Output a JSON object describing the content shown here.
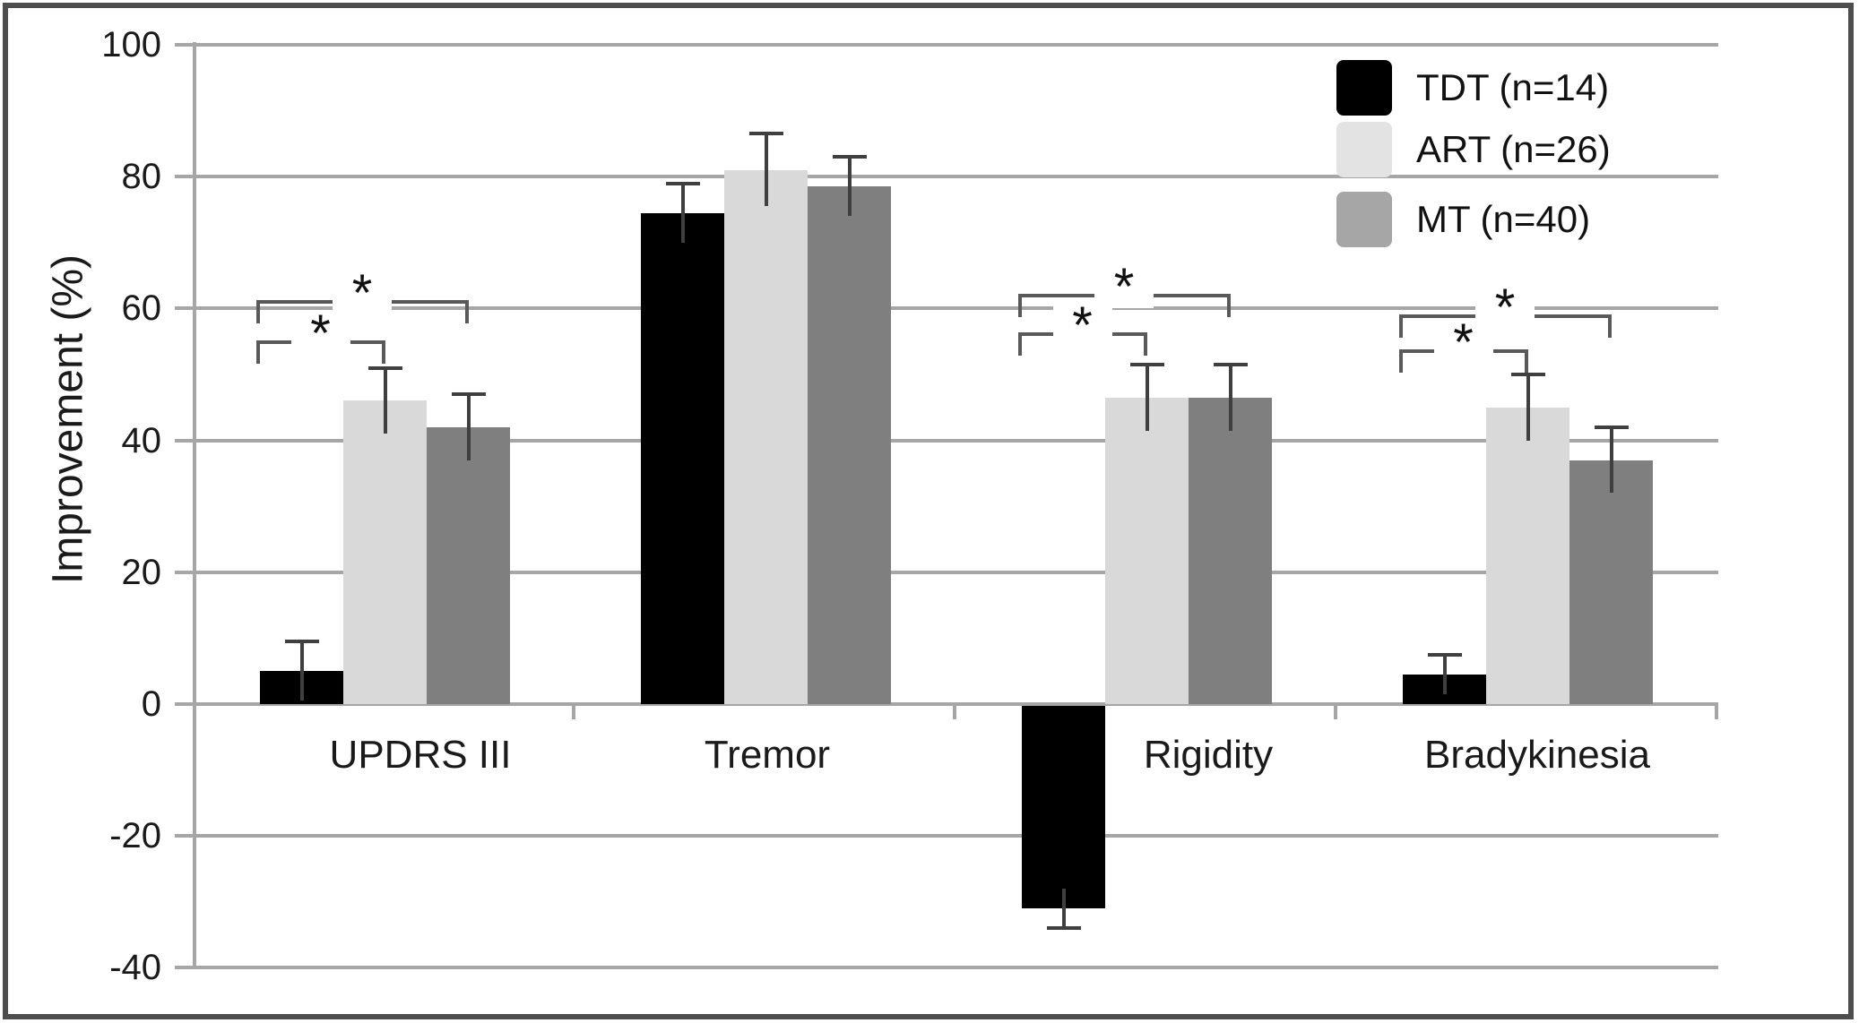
{
  "figure": {
    "background": "#ffffff",
    "border_color": "#4d4d4d"
  },
  "chart_data": {
    "type": "bar",
    "title": "",
    "xlabel": "",
    "ylabel": "Improvement (%)",
    "ylim": [
      -40,
      100
    ],
    "yticks": [
      100,
      80,
      60,
      40,
      20,
      0,
      -20,
      -40
    ],
    "grid": true,
    "gridline_color": "#a6a6a6",
    "legend_position": "top-right",
    "categories": [
      "UPDRS III",
      "Tremor",
      "Rigidity",
      "Bradykinesia"
    ],
    "series": [
      {
        "name": "TDT (n=14)",
        "color": "#000000",
        "legend_swatch_color": "#000000",
        "values": [
          5,
          74.5,
          -31,
          4.5
        ],
        "errors": [
          4.5,
          4.5,
          3,
          3
        ]
      },
      {
        "name": "ART (n=26)",
        "color": "#d9d9d9",
        "legend_swatch_color": "#e3e3e3",
        "values": [
          46,
          81,
          46.5,
          45
        ],
        "errors": [
          5,
          5.5,
          5,
          5
        ]
      },
      {
        "name": "MT (n=40)",
        "color": "#7f7f7f",
        "legend_swatch_color": "#a6a6a6",
        "values": [
          42,
          78.5,
          46.5,
          37
        ],
        "errors": [
          5,
          4.5,
          5,
          5
        ]
      }
    ],
    "error_bar_color": "#3f3f3f",
    "significance_brackets": [
      {
        "category": "UPDRS III",
        "between": [
          "TDT (n=14)",
          "ART (n=26)"
        ],
        "label": "*"
      },
      {
        "category": "UPDRS III",
        "between": [
          "TDT (n=14)",
          "MT (n=40)"
        ],
        "label": "*"
      },
      {
        "category": "Rigidity",
        "between": [
          "TDT (n=14)",
          "ART (n=26)"
        ],
        "label": "*"
      },
      {
        "category": "Rigidity",
        "between": [
          "TDT (n=14)",
          "MT (n=40)"
        ],
        "label": "*"
      },
      {
        "category": "Bradykinesia",
        "between": [
          "TDT (n=14)",
          "ART (n=26)"
        ],
        "label": "*"
      },
      {
        "category": "Bradykinesia",
        "between": [
          "TDT (n=14)",
          "MT (n=40)"
        ],
        "label": "*"
      }
    ]
  }
}
